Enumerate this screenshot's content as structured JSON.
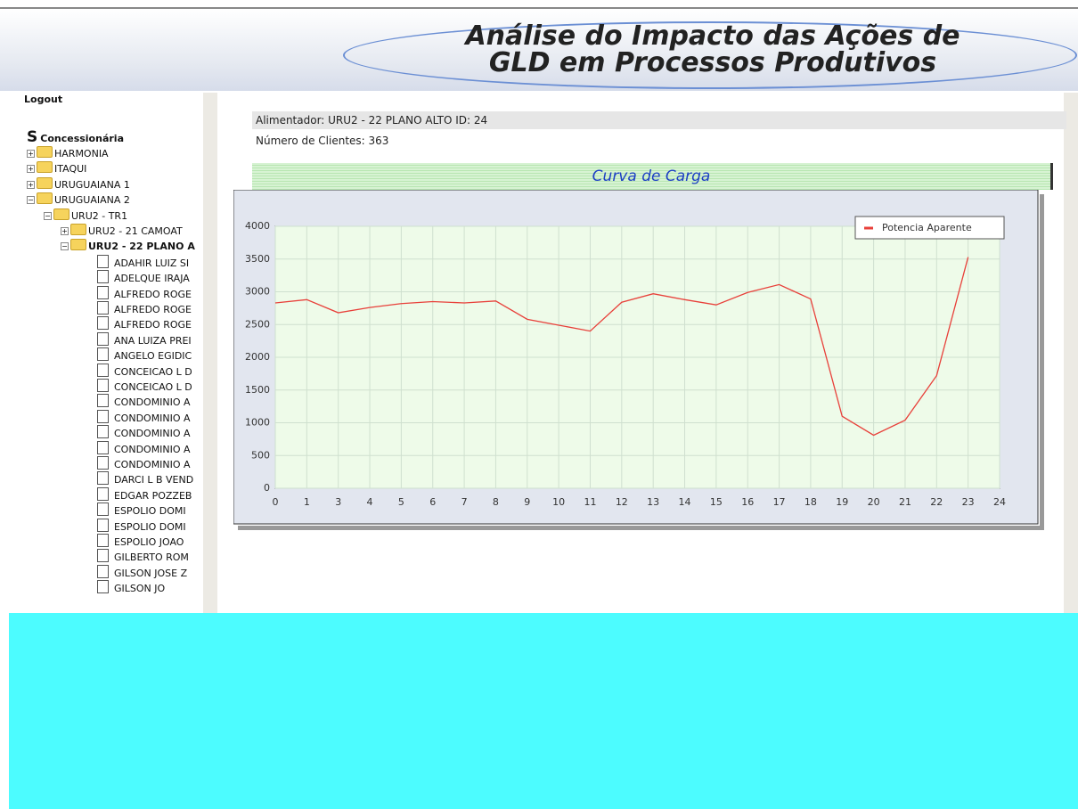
{
  "header": {
    "title_line1": "Análise do Impacto das Ações de",
    "title_line2": "GLD em Processos Produtivos"
  },
  "sidebar": {
    "logout": "Logout",
    "tree": {
      "label": "Concessionária",
      "children": [
        {
          "label": "HARMONIA"
        },
        {
          "label": "ITAQUI"
        },
        {
          "label": "URUGUAIANA 1"
        },
        {
          "label": "URUGUAIANA 2",
          "children": [
            {
              "label": "URU2 - TR1",
              "children": [
                {
                  "label": "URU2 - 21 CAMOAT"
                },
                {
                  "label": "URU2 - 22 PLANO A",
                  "children": [
                    {
                      "label": "ADAHIR LUIZ SI"
                    },
                    {
                      "label": "ADELQUE IRAJA"
                    },
                    {
                      "label": "ALFREDO ROGE"
                    },
                    {
                      "label": "ALFREDO ROGE"
                    },
                    {
                      "label": "ALFREDO ROGE"
                    },
                    {
                      "label": "ANA LUIZA PREI"
                    },
                    {
                      "label": "ANGELO EGIDIC"
                    },
                    {
                      "label": "CONCEICAO L D"
                    },
                    {
                      "label": "CONCEICAO L D"
                    },
                    {
                      "label": "CONDOMINIO A"
                    },
                    {
                      "label": "CONDOMINIO A"
                    },
                    {
                      "label": "CONDOMINIO A"
                    },
                    {
                      "label": "CONDOMINIO A"
                    },
                    {
                      "label": "CONDOMINIO A"
                    },
                    {
                      "label": "DARCI L B VEND"
                    },
                    {
                      "label": "EDGAR POZZEB"
                    },
                    {
                      "label": "ESPOLIO DOMI"
                    },
                    {
                      "label": "ESPOLIO DOMI"
                    },
                    {
                      "label": "ESPOLIO JOAO"
                    },
                    {
                      "label": "GILBERTO ROM"
                    },
                    {
                      "label": "GILSON JOSE Z"
                    },
                    {
                      "label": "GILSON JO"
                    }
                  ]
                }
              ]
            }
          ]
        }
      ]
    }
  },
  "info": {
    "alimentador": "Alimentador: URU2 - 22 PLANO ALTO ID: 24",
    "clientes": "Número de Clientes: 363"
  },
  "chart_data": {
    "type": "line",
    "title": "Curva de Carga",
    "categories": [
      "0",
      "1",
      "3",
      "4",
      "5",
      "6",
      "7",
      "8",
      "9",
      "10",
      "11",
      "12",
      "13",
      "14",
      "15",
      "16",
      "17",
      "18",
      "19",
      "20",
      "21",
      "22",
      "23",
      "24"
    ],
    "series": [
      {
        "name": "Potencia Aparente",
        "color": "#e8403a",
        "values": [
          2830,
          2880,
          2680,
          2760,
          2820,
          2850,
          2830,
          2860,
          2580,
          2490,
          2400,
          2840,
          2970,
          2880,
          2800,
          2990,
          3110,
          2890,
          1100,
          810,
          1040,
          1720,
          3530,
          null
        ]
      }
    ],
    "ylim": [
      0,
      4000
    ],
    "yticks": [
      0,
      500,
      1000,
      1500,
      2000,
      2500,
      3000,
      3500,
      4000
    ],
    "grid": true,
    "legend": "upper right"
  }
}
